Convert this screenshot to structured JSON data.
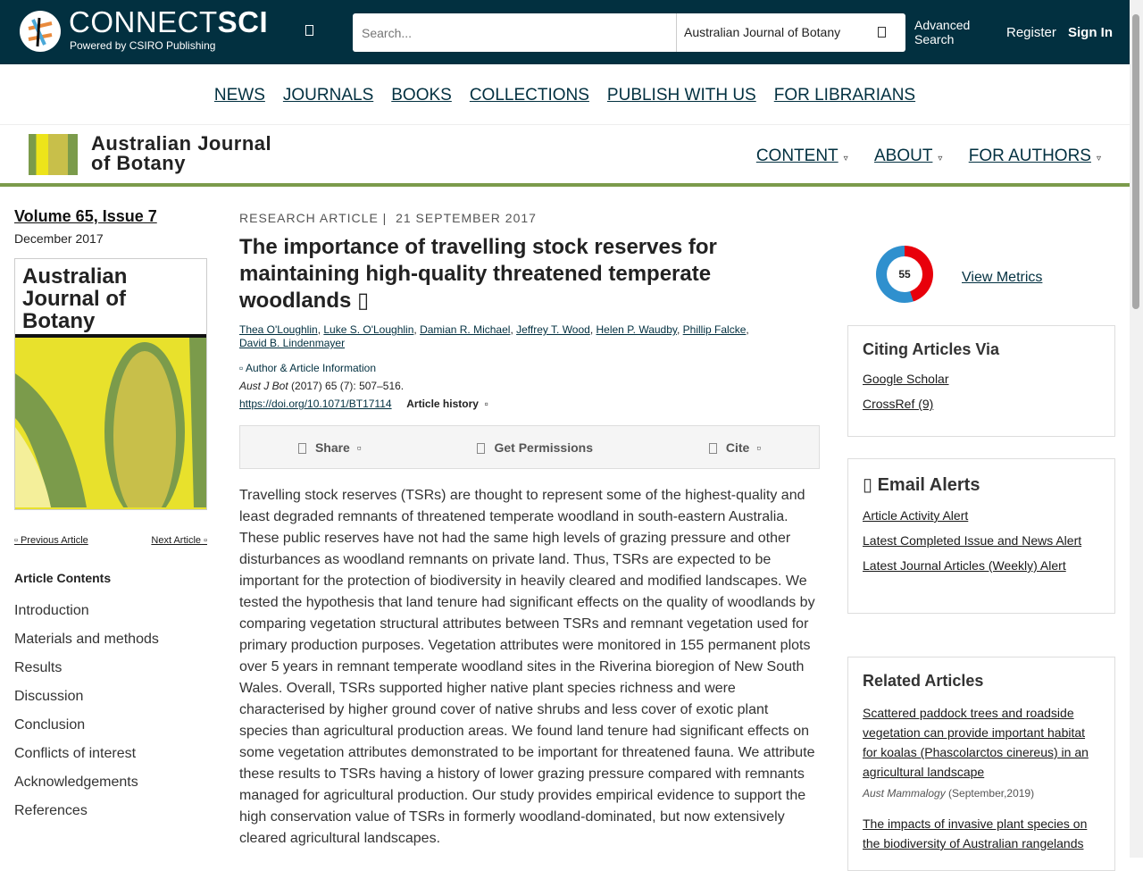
{
  "header": {
    "brand_light": "CONNECT",
    "brand_bold": "SCI",
    "powered": "Powered by CSIRO Publishing",
    "search_placeholder": "Search...",
    "search_scope": "Australian Journal of Botany",
    "advanced": "Advanced Search",
    "register": "Register",
    "signin": "Sign In"
  },
  "nav": [
    "NEWS",
    "JOURNALS",
    "BOOKS",
    "COLLECTIONS",
    "PUBLISH WITH US",
    "FOR LIBRARIANS"
  ],
  "journal": {
    "name_line1": "Australian Journal",
    "name_line2": "of Botany",
    "nav": [
      "CONTENT",
      "ABOUT",
      "FOR AUTHORS"
    ]
  },
  "left": {
    "volume": "Volume 65, Issue 7",
    "date": "December 2017",
    "cover_title": "Australian Journal of Botany",
    "prev": "Previous Article",
    "next": "Next Article",
    "contents_heading": "Article Contents",
    "toc": [
      "Introduction",
      "Materials and methods",
      "Results",
      "Discussion",
      "Conclusion",
      "Conflicts of interest",
      "Acknowledgements",
      "References"
    ]
  },
  "article": {
    "type": "RESEARCH ARTICLE",
    "date": "21 SEPTEMBER 2017",
    "title": "The importance of travelling stock reserves for maintaining high-quality threatened temperate woodlands",
    "authors": [
      "Thea O'Loughlin",
      "Luke S. O'Loughlin",
      "Damian R. Michael",
      "Jeffrey T. Wood",
      "Helen P. Waudby",
      "Phillip Falcke",
      "David B. Lindenmayer"
    ],
    "author_info": "Author & Article Information",
    "citation_journal": "Aust J Bot",
    "citation_rest": " (2017) 65 (7): 507–516.",
    "doi": "https://doi.org/10.1071/BT17114",
    "history": "Article history",
    "tools": [
      "Share",
      "Get Permissions",
      "Cite"
    ],
    "abstract": "Travelling stock reserves (TSRs) are thought to represent some of the highest-quality and least degraded remnants of threatened temperate woodland in south-eastern Australia. These public reserves have not had the same high levels of grazing pressure and other disturbances as woodland remnants on private land. Thus, TSRs are expected to be important for the protection of biodiversity in heavily cleared and modified landscapes. We tested the hypothesis that land tenure had significant effects on the quality of woodlands by comparing vegetation structural attributes between TSRs and remnant vegetation used for primary production purposes. Vegetation attributes were monitored in 155 permanent plots over 5 years in remnant temperate woodland sites in the Riverina bioregion of New South Wales. Overall, TSRs supported higher native plant species richness and were characterised by higher ground cover of native shrubs and less cover of exotic plant species than agricultural production areas. We found land tenure had significant effects on some vegetation attributes demonstrated to be important for threatened fauna. We attribute these results to TSRs having a history of lower grazing pressure compared with remnants managed for agricultural production. Our study provides empirical evidence to support the high conservation value of TSRs in formerly woodland-dominated, but now extensively cleared agricultural landscapes."
  },
  "right": {
    "altmetric": "55",
    "view_metrics": "View Metrics",
    "citing_heading": "Citing Articles Via",
    "citing": [
      "Google Scholar",
      "CrossRef (9)"
    ],
    "alerts_heading": "Email Alerts",
    "alerts": [
      "Article Activity Alert",
      "Latest Completed Issue and News Alert",
      "Latest Journal Articles (Weekly) Alert"
    ],
    "related_heading": "Related Articles",
    "related": [
      {
        "title": "Scattered paddock trees and roadside vegetation can provide important habitat for koalas (Phascolarctos cinereus) in an agricultural landscape",
        "journal": "Aust Mammalogy",
        "date": " (September,2019)"
      },
      {
        "title": "The impacts of invasive plant species on the biodiversity of Australian rangelands",
        "journal": "",
        "date": ""
      }
    ]
  }
}
